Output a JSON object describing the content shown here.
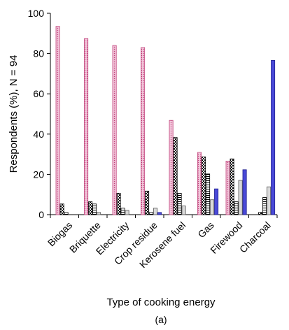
{
  "chart_data": {
    "type": "bar",
    "ylabel": "Respondents (%), N = 94",
    "xlabel": "Type of cooking energy",
    "caption": "(a)",
    "ylim": [
      0,
      100
    ],
    "yticks": [
      0,
      20,
      40,
      60,
      80,
      100
    ],
    "categories": [
      "Biogas",
      "Briquette",
      "Electricity",
      "Crop residue",
      "Kerosene fuel",
      "Gas",
      "Firewood",
      "Charcoal"
    ],
    "series": [
      {
        "values": [
          93.5,
          87.4,
          84,
          83,
          46.8,
          30.9,
          26.6,
          0
        ],
        "fill": "#f3c8dc",
        "stroke": "#c0407a",
        "pattern": "dots"
      },
      {
        "values": [
          5.3,
          6.4,
          10.6,
          11.7,
          38.3,
          28.7,
          27.7,
          1.1
        ],
        "fill": "#ffffff",
        "stroke": "#000000",
        "pattern": "checker"
      },
      {
        "values": [
          1.1,
          5.3,
          3.2,
          1.1,
          10.6,
          20.2,
          6.4,
          8.5
        ],
        "fill": "#ffffff",
        "stroke": "#000000",
        "pattern": "hlines"
      },
      {
        "values": [
          0,
          1.1,
          2.1,
          3.2,
          4.3,
          7.4,
          17,
          13.8
        ],
        "fill": "#d9d9d9",
        "stroke": "#555555",
        "pattern": "none"
      },
      {
        "values": [
          0,
          0,
          0,
          1.1,
          0,
          12.8,
          22.3,
          76.6
        ],
        "fill": "#4a4ad8",
        "stroke": "#1f1f8f",
        "pattern": "none"
      }
    ]
  }
}
